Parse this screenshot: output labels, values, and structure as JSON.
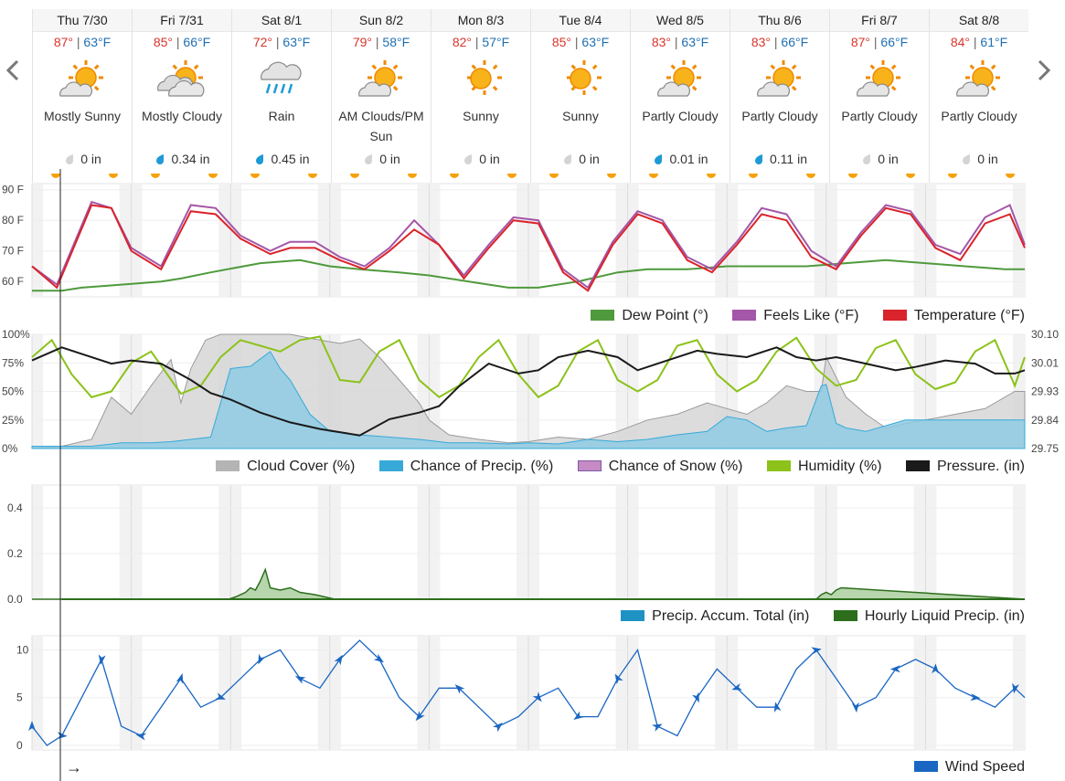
{
  "navigation": {
    "prev": "previous-days",
    "next": "next-days"
  },
  "days": [
    {
      "date": "Thu 7/30",
      "hi": "87°",
      "lo": "63°F",
      "icon": "sun-cloud",
      "condition": "Mostly Sunny",
      "precip": "0 in",
      "precip_drop": "gray"
    },
    {
      "date": "Fri 7/31",
      "hi": "85°",
      "lo": "66°F",
      "icon": "cloudy-sun",
      "condition": "Mostly Cloudy",
      "precip": "0.34 in",
      "precip_drop": "blue"
    },
    {
      "date": "Sat 8/1",
      "hi": "72°",
      "lo": "63°F",
      "icon": "rain",
      "condition": "Rain",
      "precip": "0.45 in",
      "precip_drop": "blue"
    },
    {
      "date": "Sun 8/2",
      "hi": "79°",
      "lo": "58°F",
      "icon": "sun-cloud",
      "condition": "AM Clouds/PM Sun",
      "precip": "0 in",
      "precip_drop": "gray"
    },
    {
      "date": "Mon 8/3",
      "hi": "82°",
      "lo": "57°F",
      "icon": "sun",
      "condition": "Sunny",
      "precip": "0 in",
      "precip_drop": "gray"
    },
    {
      "date": "Tue 8/4",
      "hi": "85°",
      "lo": "63°F",
      "icon": "sun",
      "condition": "Sunny",
      "precip": "0 in",
      "precip_drop": "gray"
    },
    {
      "date": "Wed 8/5",
      "hi": "83°",
      "lo": "63°F",
      "icon": "sun-cloud",
      "condition": "Partly Cloudy",
      "precip": "0.01 in",
      "precip_drop": "blue"
    },
    {
      "date": "Thu 8/6",
      "hi": "83°",
      "lo": "66°F",
      "icon": "sun-cloud",
      "condition": "Partly Cloudy",
      "precip": "0.11 in",
      "precip_drop": "blue"
    },
    {
      "date": "Fri 8/7",
      "hi": "87°",
      "lo": "66°F",
      "icon": "sun-cloud",
      "condition": "Partly Cloudy",
      "precip": "0 in",
      "precip_drop": "gray"
    },
    {
      "date": "Sat 8/8",
      "hi": "84°",
      "lo": "61°F",
      "icon": "sun-cloud",
      "condition": "Partly Cloudy",
      "precip": "0 in",
      "precip_drop": "gray"
    }
  ],
  "colors": {
    "temperature": "#d9242b",
    "feels_like": "#a456a8",
    "dew_point": "#4f9a3c",
    "cloud_cover": "#b4b4b4",
    "precip_chance": "#36a9d9",
    "snow_chance": "#c58bc4",
    "humidity": "#8cc21a",
    "pressure": "#1a1a1a",
    "precip_total": "#1f92c4",
    "hourly_precip": "#2c6e1c",
    "wind": "#1a66c2",
    "sun": "#f5a10a"
  },
  "chart_data": [
    {
      "type": "line",
      "title": "",
      "y_ticks": [
        "90 F",
        "80 F",
        "70 F",
        "60 F"
      ],
      "ylim": [
        55,
        92
      ],
      "x_unit": "day",
      "xlim": [
        0,
        10
      ],
      "legend": "bottom-right",
      "series": [
        {
          "name": "Dew Point (°)",
          "color": "dew_point",
          "x": [
            0,
            0.3,
            0.5,
            0.9,
            1.3,
            1.5,
            1.8,
            2.3,
            2.7,
            3.0,
            3.3,
            3.7,
            4.0,
            4.4,
            4.8,
            5.1,
            5.5,
            5.9,
            6.2,
            6.6,
            7.0,
            7.4,
            7.8,
            8.2,
            8.6,
            9.0,
            9.4,
            9.8,
            10
          ],
          "values": [
            57,
            57,
            58,
            59,
            60,
            61,
            63,
            66,
            67,
            65,
            64,
            63,
            62,
            60,
            58,
            58,
            60,
            63,
            64,
            64,
            65,
            65,
            65,
            66,
            67,
            66,
            65,
            64,
            64
          ]
        },
        {
          "name": "Feels Like (°F)",
          "color": "feels_like",
          "x": [
            0,
            0.25,
            0.6,
            0.8,
            1.0,
            1.3,
            1.6,
            1.85,
            2.1,
            2.4,
            2.6,
            2.85,
            3.1,
            3.35,
            3.6,
            3.85,
            4.1,
            4.35,
            4.6,
            4.85,
            5.1,
            5.35,
            5.6,
            5.85,
            6.1,
            6.35,
            6.6,
            6.85,
            7.1,
            7.35,
            7.6,
            7.85,
            8.1,
            8.35,
            8.6,
            8.85,
            9.1,
            9.35,
            9.6,
            9.85,
            10
          ],
          "values": [
            65,
            59,
            86,
            84,
            71,
            65,
            85,
            84,
            75,
            70,
            73,
            73,
            68,
            65,
            71,
            80,
            72,
            62,
            72,
            81,
            80,
            64,
            58,
            73,
            83,
            80,
            68,
            64,
            73,
            84,
            82,
            70,
            65,
            76,
            85,
            83,
            72,
            69,
            81,
            85,
            72
          ]
        },
        {
          "name": "Temperature (°F)",
          "color": "temperature",
          "x": [
            0,
            0.25,
            0.6,
            0.8,
            1.0,
            1.3,
            1.6,
            1.85,
            2.1,
            2.4,
            2.6,
            2.85,
            3.1,
            3.35,
            3.6,
            3.85,
            4.1,
            4.35,
            4.6,
            4.85,
            5.1,
            5.35,
            5.6,
            5.85,
            6.1,
            6.35,
            6.6,
            6.85,
            7.1,
            7.35,
            7.6,
            7.85,
            8.1,
            8.35,
            8.6,
            8.85,
            9.1,
            9.35,
            9.6,
            9.85,
            10
          ],
          "values": [
            65,
            58,
            85,
            84,
            70,
            64,
            83,
            82,
            74,
            69,
            71,
            71,
            67,
            64,
            70,
            77,
            72,
            61,
            71,
            80,
            79,
            63,
            57,
            72,
            82,
            79,
            67,
            63,
            72,
            82,
            80,
            68,
            64,
            75,
            84,
            82,
            71,
            67,
            79,
            82,
            71
          ]
        }
      ]
    },
    {
      "type": "area",
      "title": "",
      "y_ticks_left": [
        "100%",
        "75%",
        "50%",
        "25%",
        "0%"
      ],
      "y_ticks_right": [
        "30.10",
        "30.01",
        "29.93",
        "29.84",
        "29.75"
      ],
      "ylim": [
        0,
        100
      ],
      "ylim_right": [
        29.75,
        30.1
      ],
      "xlim": [
        0,
        10
      ],
      "legend": "bottom-right",
      "series": [
        {
          "name": "Cloud Cover (%)",
          "color": "cloud_cover",
          "kind": "area",
          "x": [
            0,
            0.3,
            0.6,
            0.8,
            1.0,
            1.2,
            1.4,
            1.5,
            1.6,
            1.75,
            1.9,
            2.0,
            2.3,
            2.6,
            2.9,
            3.1,
            3.3,
            3.5,
            3.7,
            3.9,
            4.0,
            4.2,
            4.5,
            4.8,
            5.0,
            5.3,
            5.6,
            5.9,
            6.2,
            6.5,
            6.8,
            7.0,
            7.2,
            7.4,
            7.6,
            7.8,
            7.95,
            8.0,
            8.2,
            8.4,
            8.6,
            8.8,
            9.0,
            9.3,
            9.6,
            9.9,
            10
          ],
          "values": [
            0,
            2,
            8,
            45,
            30,
            55,
            78,
            40,
            70,
            95,
            100,
            100,
            100,
            100,
            95,
            92,
            96,
            80,
            60,
            40,
            25,
            12,
            8,
            5,
            6,
            10,
            8,
            15,
            25,
            30,
            40,
            35,
            30,
            40,
            55,
            50,
            50,
            80,
            45,
            30,
            18,
            22,
            25,
            30,
            35,
            50,
            50
          ]
        },
        {
          "name": "Chance of Precip. (%)",
          "color": "precip_chance",
          "kind": "area",
          "x": [
            0,
            0.3,
            0.6,
            0.9,
            1.2,
            1.4,
            1.6,
            1.8,
            2.0,
            2.2,
            2.4,
            2.5,
            2.6,
            2.8,
            3.0,
            3.3,
            3.6,
            3.9,
            4.2,
            4.5,
            4.8,
            5.0,
            5.3,
            5.6,
            5.9,
            6.2,
            6.5,
            6.8,
            7.0,
            7.2,
            7.4,
            7.6,
            7.8,
            7.95,
            8.0,
            8.1,
            8.2,
            8.4,
            8.6,
            8.8,
            9.0,
            9.3,
            9.6,
            9.9,
            10
          ],
          "values": [
            2,
            2,
            2,
            5,
            5,
            6,
            8,
            10,
            70,
            72,
            85,
            70,
            60,
            30,
            15,
            12,
            10,
            8,
            5,
            5,
            4,
            5,
            4,
            8,
            6,
            8,
            12,
            15,
            28,
            25,
            15,
            18,
            20,
            55,
            56,
            22,
            18,
            15,
            20,
            25,
            25,
            25,
            25,
            25,
            25
          ]
        },
        {
          "name": "Chance of Snow (%)",
          "color": "snow_chance",
          "kind": "area",
          "x": [
            0,
            10
          ],
          "values": [
            0,
            0
          ]
        },
        {
          "name": "Humidity (%)",
          "color": "humidity",
          "kind": "line",
          "x": [
            0,
            0.2,
            0.4,
            0.6,
            0.8,
            1.0,
            1.2,
            1.5,
            1.7,
            1.9,
            2.1,
            2.3,
            2.5,
            2.7,
            2.9,
            3.1,
            3.3,
            3.5,
            3.7,
            3.9,
            4.1,
            4.3,
            4.5,
            4.7,
            4.9,
            5.1,
            5.3,
            5.5,
            5.7,
            5.9,
            6.1,
            6.3,
            6.5,
            6.7,
            6.9,
            7.1,
            7.3,
            7.5,
            7.7,
            7.9,
            8.1,
            8.3,
            8.5,
            8.7,
            8.9,
            9.1,
            9.3,
            9.5,
            9.7,
            9.9,
            10
          ],
          "values": [
            80,
            95,
            65,
            45,
            50,
            75,
            85,
            48,
            55,
            80,
            95,
            90,
            85,
            95,
            98,
            60,
            58,
            85,
            95,
            60,
            45,
            55,
            80,
            95,
            65,
            45,
            55,
            85,
            95,
            60,
            50,
            60,
            90,
            95,
            65,
            50,
            60,
            85,
            97,
            70,
            55,
            60,
            88,
            95,
            65,
            52,
            58,
            85,
            95,
            55,
            80
          ]
        },
        {
          "name": "Pressure. (in)",
          "color": "pressure",
          "kind": "line",
          "x": [
            0,
            0.3,
            0.5,
            0.8,
            1.0,
            1.3,
            1.6,
            1.8,
            2.0,
            2.3,
            2.6,
            2.9,
            3.1,
            3.3,
            3.6,
            3.9,
            4.1,
            4.3,
            4.6,
            4.9,
            5.1,
            5.3,
            5.6,
            5.9,
            6.1,
            6.4,
            6.7,
            6.9,
            7.2,
            7.5,
            7.7,
            7.9,
            8.1,
            8.4,
            8.7,
            8.9,
            9.2,
            9.5,
            9.7,
            9.9,
            10
          ],
          "values": [
            30.02,
            30.06,
            30.04,
            30.01,
            30.02,
            30.01,
            29.96,
            29.92,
            29.9,
            29.86,
            29.83,
            29.81,
            29.8,
            29.79,
            29.84,
            29.86,
            29.88,
            29.94,
            30.01,
            29.98,
            29.99,
            30.03,
            30.05,
            30.03,
            29.99,
            30.02,
            30.05,
            30.04,
            30.03,
            30.06,
            30.03,
            30.02,
            30.03,
            30.01,
            29.99,
            30.0,
            30.02,
            30.01,
            29.98,
            29.98,
            29.99
          ]
        }
      ]
    },
    {
      "type": "area",
      "title": "",
      "y_ticks": [
        "0.4",
        "0.2",
        "0.0"
      ],
      "ylim": [
        0,
        0.5
      ],
      "xlim": [
        0,
        10
      ],
      "legend": "bottom-right",
      "series": [
        {
          "name": "Precip. Accum. Total (in)",
          "color": "precip_total",
          "kind": "line",
          "x": [
            0,
            10
          ],
          "values": [
            0,
            0
          ]
        },
        {
          "name": "Hourly Liquid Precip. (in)",
          "color": "hourly_precip",
          "kind": "area",
          "x": [
            0,
            1.98,
            2.05,
            2.15,
            2.2,
            2.25,
            2.3,
            2.35,
            2.4,
            2.5,
            2.6,
            2.7,
            2.85,
            2.95,
            3.05,
            7.9,
            7.95,
            8.0,
            8.05,
            8.1,
            8.15,
            10
          ],
          "values": [
            0,
            0,
            0.01,
            0.03,
            0.05,
            0.04,
            0.08,
            0.13,
            0.05,
            0.04,
            0.05,
            0.03,
            0.02,
            0.01,
            0,
            0,
            0.02,
            0.03,
            0.02,
            0.04,
            0.05,
            0
          ]
        }
      ]
    },
    {
      "type": "line",
      "title": "",
      "y_ticks": [
        "10",
        "5",
        "0"
      ],
      "ylim": [
        0,
        11
      ],
      "xlim": [
        0,
        10
      ],
      "legend": "bottom-right",
      "series": [
        {
          "name": "Wind Speed",
          "color": "wind",
          "x": [
            0,
            0.15,
            0.3,
            0.5,
            0.7,
            0.9,
            1.1,
            1.3,
            1.5,
            1.7,
            1.9,
            2.1,
            2.3,
            2.5,
            2.7,
            2.9,
            3.1,
            3.3,
            3.5,
            3.7,
            3.9,
            4.1,
            4.3,
            4.5,
            4.7,
            4.9,
            5.1,
            5.3,
            5.5,
            5.7,
            5.9,
            6.1,
            6.3,
            6.5,
            6.7,
            6.9,
            7.1,
            7.3,
            7.5,
            7.7,
            7.9,
            8.1,
            8.3,
            8.5,
            8.7,
            8.9,
            9.1,
            9.3,
            9.5,
            9.7,
            9.9,
            10
          ],
          "values": [
            2,
            0,
            1,
            5,
            9,
            2,
            1,
            4,
            7,
            4,
            5,
            7,
            9,
            10,
            7,
            6,
            9,
            11,
            9,
            5,
            3,
            6,
            6,
            4,
            2,
            3,
            5,
            6,
            3,
            3,
            7,
            10,
            2,
            1,
            5,
            8,
            6,
            4,
            4,
            8,
            10,
            7,
            4,
            5,
            8,
            9,
            8,
            6,
            5,
            4,
            6,
            5
          ]
        }
      ]
    }
  ],
  "now_marker": "→"
}
